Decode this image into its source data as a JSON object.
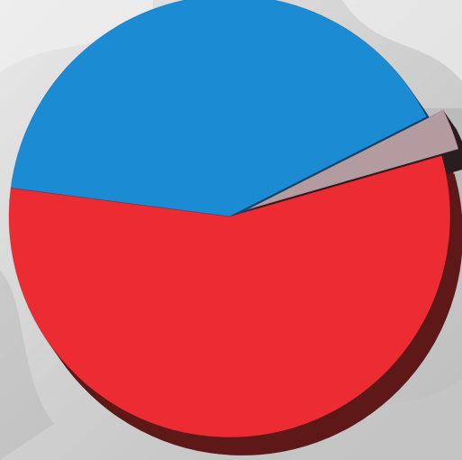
{
  "chart_data": {
    "type": "pie",
    "style": "3d-exploded",
    "title": "",
    "slices": [
      {
        "value": 56.5,
        "color": "#ec2b33",
        "side_color": "#5e1818"
      },
      {
        "value": 40.5,
        "color": "#1b8bd4",
        "side_color": "#0c4472"
      },
      {
        "value": 3.0,
        "color": "#b49ba0",
        "side_color": "#2b1c20",
        "exploded": true
      }
    ],
    "legend": "none",
    "background": "grayscale photo"
  }
}
